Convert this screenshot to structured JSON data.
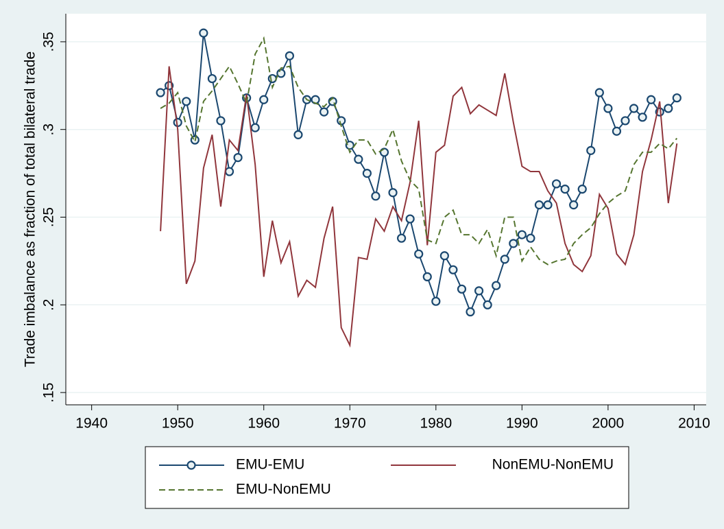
{
  "chart_data": {
    "type": "line",
    "y_label": "Trade imbalance as fraction of total bilateral trade",
    "x": [
      1948,
      1949,
      1950,
      1951,
      1952,
      1953,
      1954,
      1955,
      1956,
      1957,
      1958,
      1959,
      1960,
      1961,
      1962,
      1963,
      1964,
      1965,
      1966,
      1967,
      1968,
      1969,
      1970,
      1971,
      1972,
      1973,
      1974,
      1975,
      1976,
      1977,
      1978,
      1979,
      1980,
      1981,
      1982,
      1983,
      1984,
      1985,
      1986,
      1987,
      1988,
      1989,
      1990,
      1991,
      1992,
      1993,
      1994,
      1995,
      1996,
      1997,
      1998,
      1999,
      2000,
      2001,
      2002,
      2003,
      2004,
      2005,
      2006,
      2007,
      2008
    ],
    "series": [
      {
        "name": "EMU-EMU",
        "color": "#1a476f",
        "dash": "solid",
        "marker": "circle",
        "values": [
          0.321,
          0.325,
          0.304,
          0.316,
          0.294,
          0.355,
          0.329,
          0.305,
          0.276,
          0.284,
          0.318,
          0.301,
          0.317,
          0.329,
          0.332,
          0.342,
          0.297,
          0.317,
          0.317,
          0.31,
          0.316,
          0.305,
          0.291,
          0.283,
          0.275,
          0.262,
          0.287,
          0.264,
          0.238,
          0.249,
          0.229,
          0.216,
          0.202,
          0.228,
          0.22,
          0.209,
          0.196,
          0.208,
          0.2,
          0.211,
          0.226,
          0.235,
          0.24,
          0.238,
          0.257,
          0.257,
          0.269,
          0.266,
          0.257,
          0.266,
          0.288,
          0.321,
          0.312,
          0.299,
          0.305,
          0.312,
          0.307,
          0.317,
          0.31,
          0.312,
          0.318
        ]
      },
      {
        "name": "NonEMU-NonEMU",
        "color": "#90353b",
        "dash": "solid",
        "marker": "none",
        "values": [
          0.242,
          0.336,
          0.3,
          0.212,
          0.225,
          0.278,
          0.297,
          0.256,
          0.294,
          0.288,
          0.32,
          0.28,
          0.216,
          0.248,
          0.224,
          0.236,
          0.205,
          0.214,
          0.21,
          0.238,
          0.256,
          0.187,
          0.177,
          0.227,
          0.226,
          0.249,
          0.242,
          0.256,
          0.248,
          0.27,
          0.305,
          0.234,
          0.287,
          0.291,
          0.319,
          0.324,
          0.309,
          0.314,
          0.311,
          0.308,
          0.332,
          0.304,
          0.279,
          0.276,
          0.276,
          0.265,
          0.258,
          0.235,
          0.223,
          0.219,
          0.228,
          0.263,
          0.255,
          0.229,
          0.223,
          0.24,
          0.276,
          0.294,
          0.316,
          0.258,
          0.292
        ]
      },
      {
        "name": "EMU-NonEMU",
        "color": "#55752f",
        "dash": "dashed",
        "marker": "none",
        "values": [
          0.312,
          0.315,
          0.321,
          0.302,
          0.293,
          0.316,
          0.322,
          0.329,
          0.336,
          0.326,
          0.315,
          0.343,
          0.352,
          0.324,
          0.335,
          0.336,
          0.324,
          0.317,
          0.315,
          0.313,
          0.318,
          0.302,
          0.287,
          0.294,
          0.294,
          0.286,
          0.289,
          0.3,
          0.282,
          0.271,
          0.266,
          0.237,
          0.235,
          0.25,
          0.254,
          0.24,
          0.24,
          0.235,
          0.243,
          0.228,
          0.25,
          0.25,
          0.225,
          0.233,
          0.226,
          0.223,
          0.225,
          0.226,
          0.235,
          0.24,
          0.244,
          0.252,
          0.258,
          0.262,
          0.265,
          0.28,
          0.287,
          0.287,
          0.292,
          0.289,
          0.295
        ]
      }
    ],
    "xlim": [
      1937,
      2011.4
    ],
    "ylim": [
      0.143,
      0.366
    ],
    "xticks": [
      1940,
      1950,
      1960,
      1970,
      1980,
      1990,
      2000,
      2010
    ],
    "yticks": [
      {
        "value": 0.15,
        "label": ".15"
      },
      {
        "value": 0.2,
        "label": ".2"
      },
      {
        "value": 0.25,
        "label": ".25"
      },
      {
        "value": 0.3,
        "label": ".3"
      },
      {
        "value": 0.35,
        "label": ".35"
      }
    ],
    "grid": true
  }
}
